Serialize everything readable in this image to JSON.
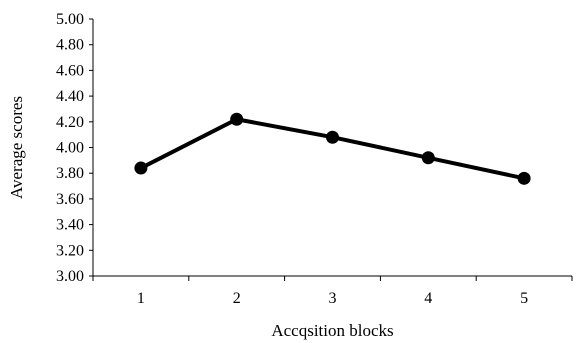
{
  "chart_data": {
    "type": "line",
    "title": "",
    "xlabel": "Accqsition blocks",
    "ylabel": "Average scores",
    "categories": [
      "1",
      "2",
      "3",
      "4",
      "5"
    ],
    "series": [
      {
        "values": [
          3.84,
          4.22,
          4.08,
          3.92,
          3.76
        ]
      }
    ],
    "ylim": [
      3.0,
      5.0
    ],
    "yticks": [
      "3.00",
      "3.20",
      "3.40",
      "3.60",
      "3.80",
      "4.00",
      "4.20",
      "4.40",
      "4.60",
      "4.80",
      "5.00"
    ],
    "grid": false,
    "legend": "none",
    "line_color": "#000000",
    "marker": "filled-circle"
  }
}
